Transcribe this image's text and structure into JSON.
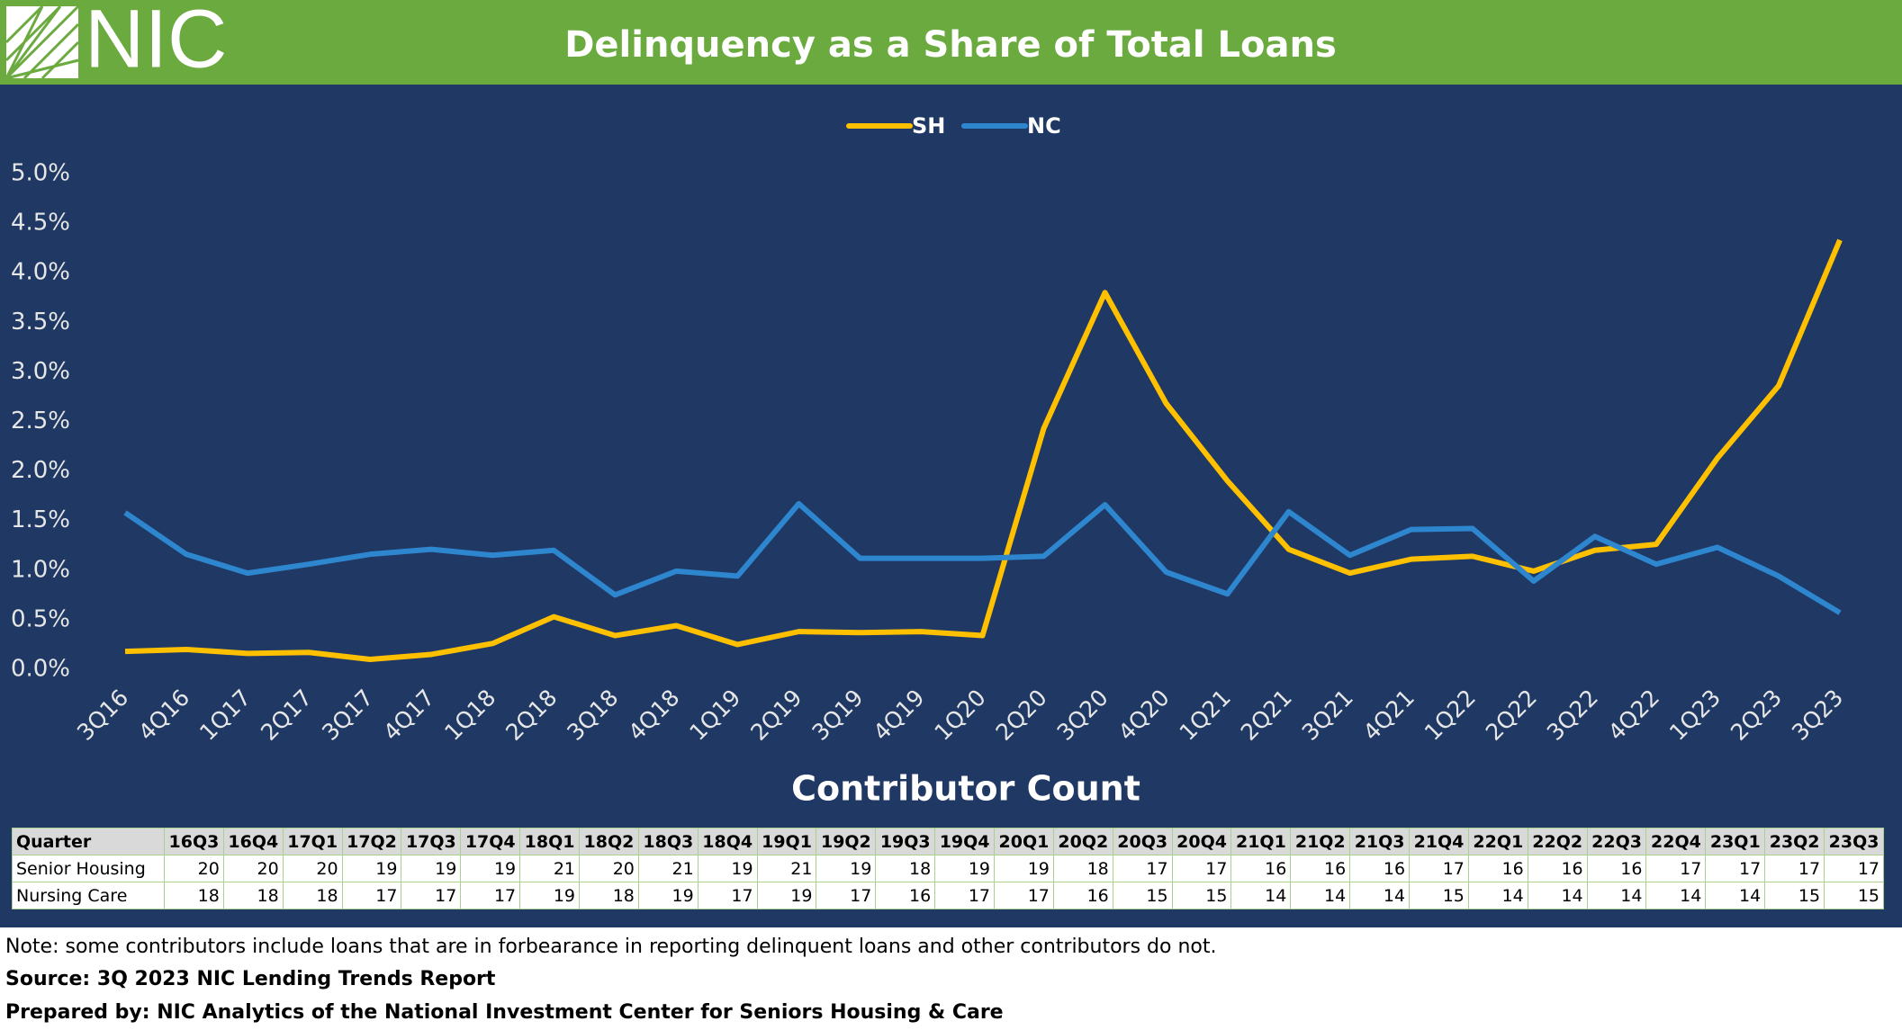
{
  "logo": "NIC",
  "chart_data": {
    "type": "line",
    "title": "Delinquency as a Share of Total Loans",
    "categories": [
      "3Q16",
      "4Q16",
      "1Q17",
      "2Q17",
      "3Q17",
      "4Q17",
      "1Q18",
      "2Q18",
      "3Q18",
      "4Q18",
      "1Q19",
      "2Q19",
      "3Q19",
      "4Q19",
      "1Q20",
      "2Q20",
      "3Q20",
      "4Q20",
      "1Q21",
      "2Q21",
      "3Q21",
      "4Q21",
      "1Q22",
      "2Q22",
      "3Q22",
      "4Q22",
      "1Q23",
      "2Q23",
      "3Q23"
    ],
    "series": [
      {
        "name": "SH",
        "color": "#ffc000",
        "values": [
          0.18,
          0.2,
          0.16,
          0.17,
          0.1,
          0.15,
          0.26,
          0.53,
          0.34,
          0.44,
          0.25,
          0.38,
          0.37,
          0.38,
          0.34,
          2.43,
          3.8,
          2.68,
          1.9,
          1.21,
          0.97,
          1.11,
          1.14,
          0.99,
          1.2,
          1.26,
          2.13,
          2.86,
          4.33
        ]
      },
      {
        "name": "NC",
        "color": "#2e86cf",
        "values": [
          1.58,
          1.16,
          0.97,
          1.06,
          1.16,
          1.21,
          1.15,
          1.2,
          0.75,
          0.99,
          0.94,
          1.67,
          1.12,
          1.12,
          1.12,
          1.14,
          1.66,
          0.98,
          0.76,
          1.59,
          1.15,
          1.41,
          1.42,
          0.89,
          1.34,
          1.06,
          1.23,
          0.94,
          0.57
        ]
      }
    ],
    "ylim": [
      0,
      5
    ],
    "yticks": [
      {
        "value": 0,
        "label": "0.0%"
      },
      {
        "value": 0.5,
        "label": "0.5%"
      },
      {
        "value": 1,
        "label": "1.0%"
      },
      {
        "value": 1.5,
        "label": "1.5%"
      },
      {
        "value": 2,
        "label": "2.0%"
      },
      {
        "value": 2.5,
        "label": "2.5%"
      },
      {
        "value": 3,
        "label": "3.0%"
      },
      {
        "value": 3.5,
        "label": "3.5%"
      },
      {
        "value": 4,
        "label": "4.0%"
      },
      {
        "value": 4.5,
        "label": "4.5%"
      },
      {
        "value": 5,
        "label": "5.0%"
      }
    ],
    "legend": "top"
  },
  "table": {
    "title": "Contributor Count",
    "header": [
      "Quarter",
      "16Q3",
      "16Q4",
      "17Q1",
      "17Q2",
      "17Q3",
      "17Q4",
      "18Q1",
      "18Q2",
      "18Q3",
      "18Q4",
      "19Q1",
      "19Q2",
      "19Q3",
      "19Q4",
      "20Q1",
      "20Q2",
      "20Q3",
      "20Q4",
      "21Q1",
      "21Q2",
      "21Q3",
      "21Q4",
      "22Q1",
      "22Q2",
      "22Q3",
      "22Q4",
      "23Q1",
      "23Q2",
      "23Q3"
    ],
    "rows": [
      [
        "Senior Housing",
        20,
        20,
        20,
        19,
        19,
        19,
        21,
        20,
        21,
        19,
        21,
        19,
        18,
        19,
        19,
        18,
        17,
        17,
        16,
        16,
        16,
        17,
        16,
        16,
        16,
        17,
        17,
        17,
        17
      ],
      [
        "Nursing Care",
        18,
        18,
        18,
        17,
        17,
        17,
        19,
        18,
        19,
        17,
        19,
        17,
        16,
        17,
        17,
        16,
        15,
        15,
        14,
        14,
        14,
        15,
        14,
        14,
        14,
        14,
        14,
        15,
        15
      ]
    ]
  },
  "notes": [
    "Note: some contributors include loans that are in forbearance in reporting delinquent loans and other contributors do not.",
    "Source: 3Q 2023 NIC Lending Trends Report",
    "Prepared by: NIC Analytics of the National Investment Center for Seniors Housing & Care"
  ]
}
